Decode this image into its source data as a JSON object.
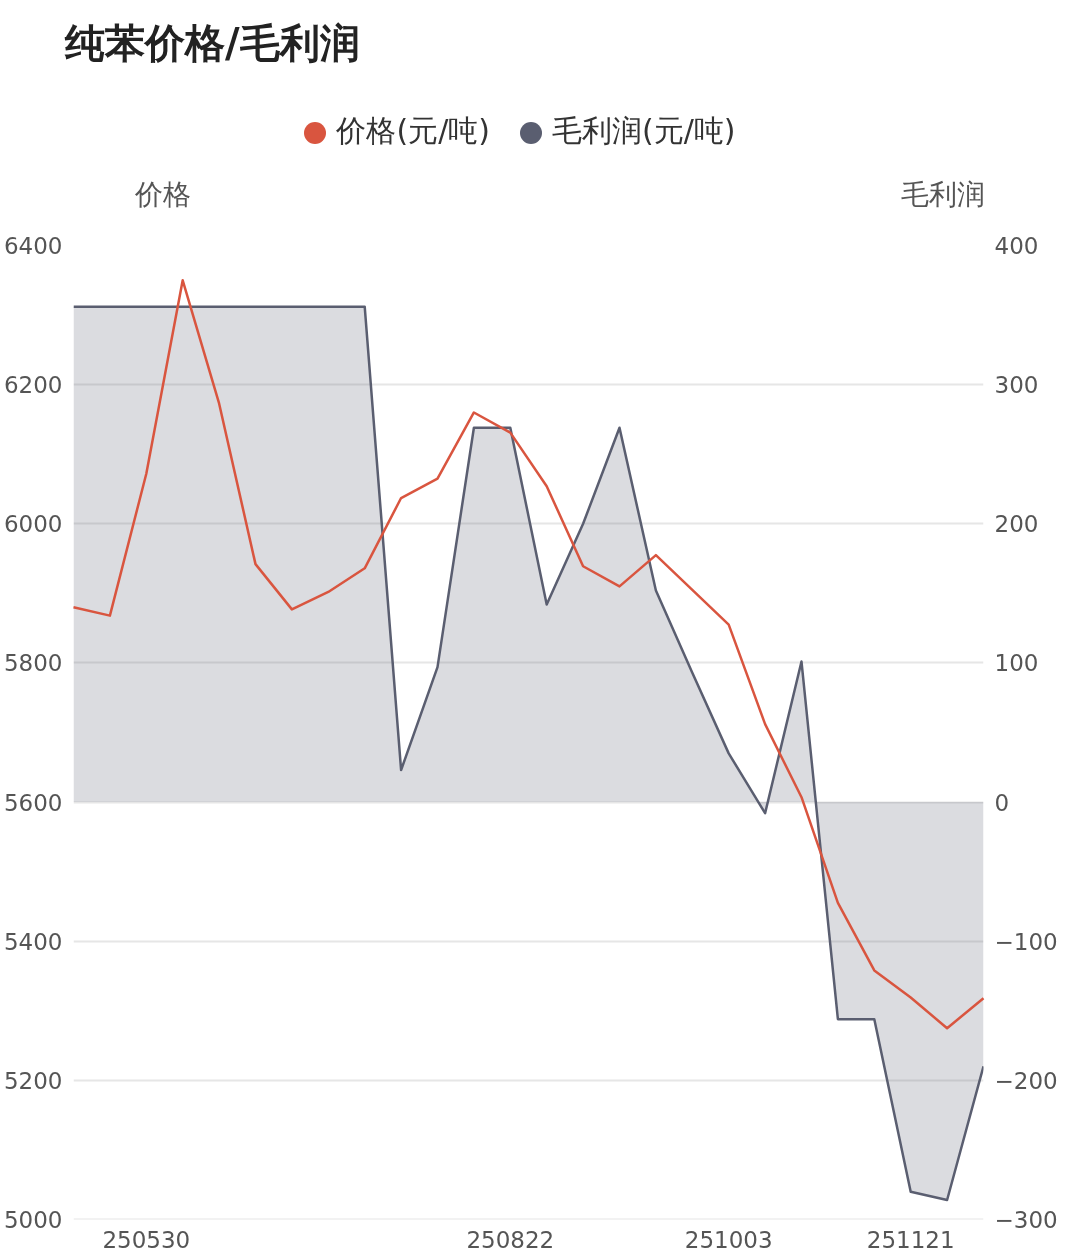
{
  "chart_data": {
    "type": "line",
    "title": "纯苯价格/毛利润",
    "ylabel": "价格",
    "y2label": "毛利润",
    "categories": [
      null,
      null,
      "250530",
      null,
      null,
      null,
      null,
      null,
      null,
      null,
      null,
      null,
      "250822",
      null,
      null,
      null,
      null,
      null,
      "251003",
      null,
      null,
      null,
      null,
      "251121",
      null,
      null
    ],
    "series": [
      {
        "name": "价格(元/吨)",
        "color": "#d9553f",
        "values": [
          5880,
          5868,
          6072,
          6350,
          6173,
          5942,
          5877,
          5902,
          5936,
          6037,
          6065,
          6160,
          6131,
          6054,
          5939,
          5910,
          5955,
          5905,
          5855,
          5712,
          5607,
          5455,
          5358,
          5319,
          5275,
          5318
        ]
      },
      {
        "name": "毛利润(元/吨)",
        "color": "#5a5e70",
        "type": "area",
        "axis": "y2",
        "values": [
          356,
          356,
          356,
          356,
          356,
          356,
          356,
          356,
          356,
          23,
          97,
          269,
          269,
          142,
          200,
          269,
          152,
          93,
          35,
          -8,
          101,
          -156,
          -156,
          -280,
          -286,
          -190
        ]
      }
    ],
    "ylim": [
      5000,
      6400
    ],
    "yticks": [
      5000,
      5200,
      5400,
      5600,
      5800,
      6000,
      6200,
      6400
    ],
    "y2lim": [
      -300,
      400
    ],
    "y2ticks": [
      -300,
      -200,
      -100,
      0,
      100,
      200,
      300,
      400
    ],
    "grid": "y",
    "legend": "top",
    "marker": "none"
  }
}
